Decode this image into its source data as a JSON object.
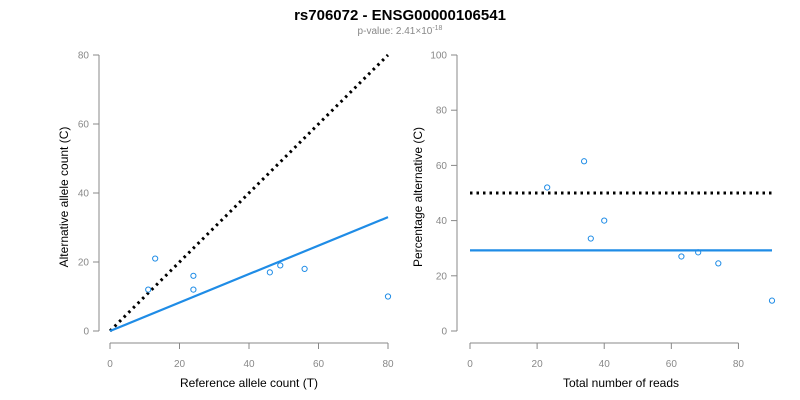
{
  "header": {
    "title": "rs706072 - ENSG00000106541",
    "pvalue_prefix": "p-value: 2.41×10",
    "pvalue_exponent": "-18"
  },
  "colors": {
    "accent": "#1f8ce6",
    "reference_line": "#000000",
    "axis": "#888888"
  },
  "chart_data": [
    {
      "type": "scatter",
      "xlabel": "Reference allele count (T)",
      "ylabel": "Alternative allele count (C)",
      "xlim": [
        0,
        80
      ],
      "ylim": [
        0,
        80
      ],
      "xticks": [
        0,
        20,
        40,
        60,
        80
      ],
      "yticks": [
        0,
        20,
        40,
        60,
        80
      ],
      "points": [
        {
          "x": 11,
          "y": 12
        },
        {
          "x": 13,
          "y": 21
        },
        {
          "x": 24,
          "y": 16
        },
        {
          "x": 24,
          "y": 12
        },
        {
          "x": 46,
          "y": 17
        },
        {
          "x": 49,
          "y": 19
        },
        {
          "x": 56,
          "y": 18
        },
        {
          "x": 80,
          "y": 10
        }
      ],
      "fit_line": [
        [
          0,
          0
        ],
        [
          80,
          33
        ]
      ],
      "reference_line": [
        [
          0,
          0
        ],
        [
          80,
          80
        ]
      ],
      "grid": false
    },
    {
      "type": "scatter",
      "xlabel": "Total number of reads",
      "ylabel": "Percentage alternative (C)",
      "xlim": [
        0,
        90
      ],
      "ylim": [
        0,
        100
      ],
      "xticks": [
        0,
        20,
        40,
        60,
        80
      ],
      "yticks": [
        0,
        20,
        40,
        60,
        80,
        100
      ],
      "points": [
        {
          "x": 23,
          "y": 52
        },
        {
          "x": 34,
          "y": 61.5
        },
        {
          "x": 36,
          "y": 33.5
        },
        {
          "x": 40,
          "y": 40
        },
        {
          "x": 63,
          "y": 27
        },
        {
          "x": 68,
          "y": 28.5
        },
        {
          "x": 74,
          "y": 24.5
        },
        {
          "x": 90,
          "y": 11
        }
      ],
      "fit_line": [
        [
          0,
          29.2
        ],
        [
          90,
          29.2
        ]
      ],
      "reference_line": [
        [
          0,
          50
        ],
        [
          90,
          50
        ]
      ],
      "grid": false
    }
  ]
}
